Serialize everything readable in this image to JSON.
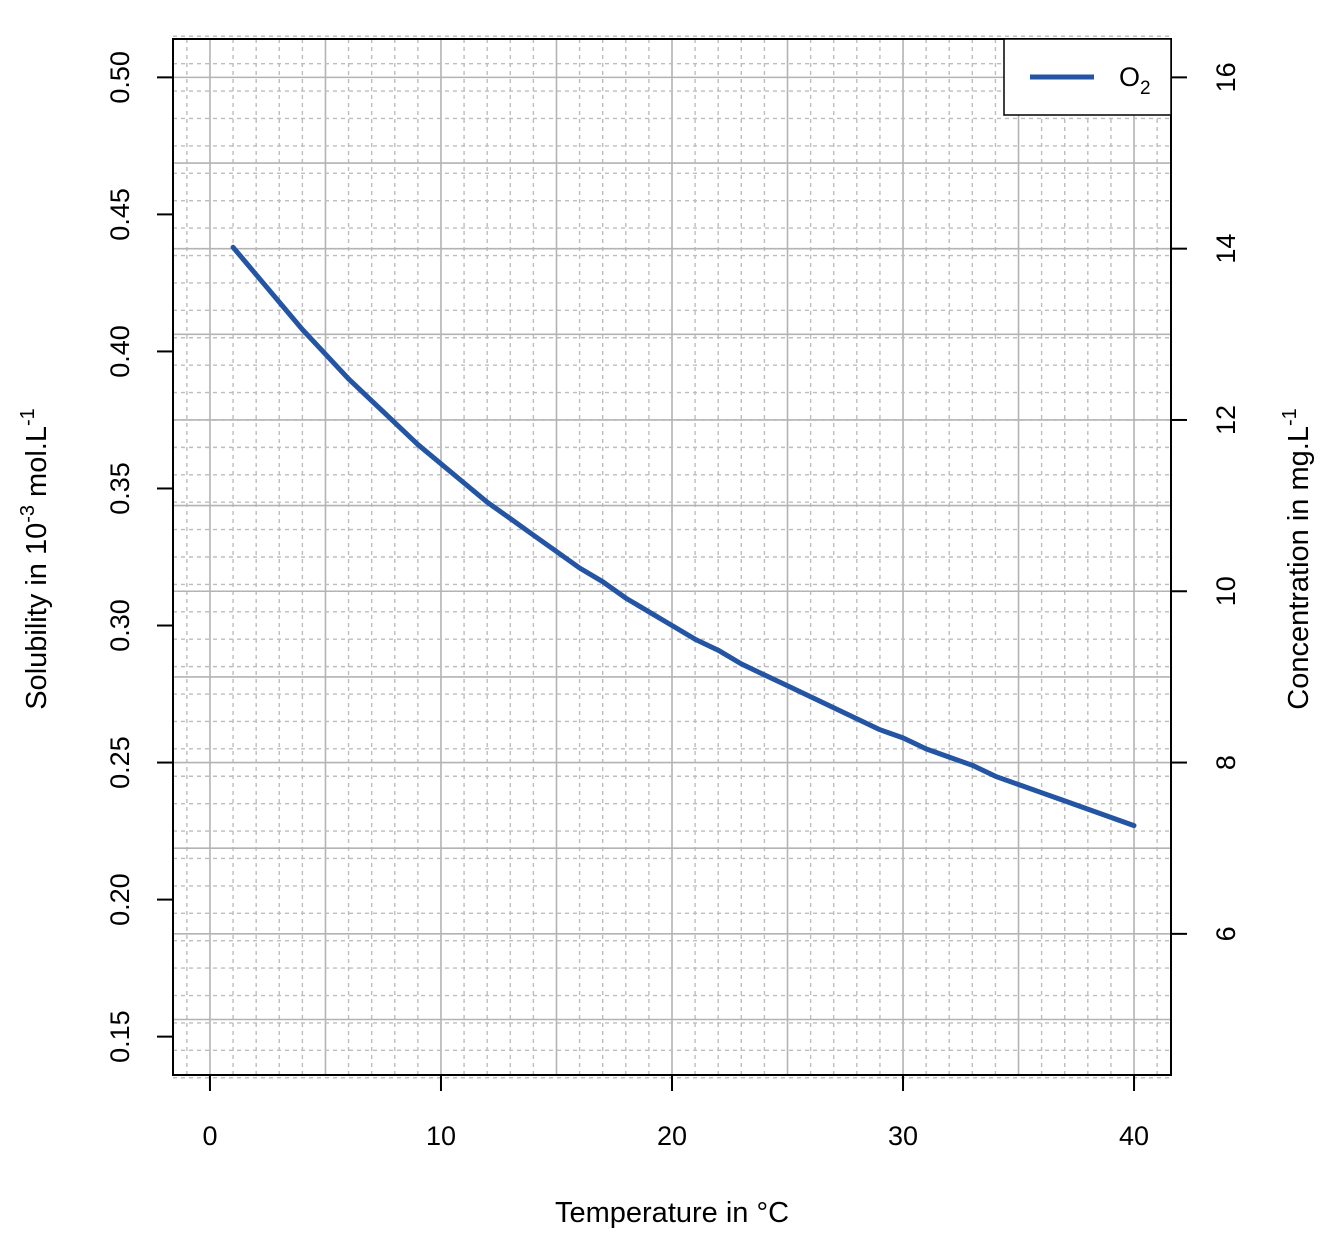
{
  "chart_data": {
    "type": "line",
    "xlabel": "Temperature in °C",
    "ylabel": {
      "prefix": "Solubility in 10",
      "sup1": "-3",
      "middle": " mol.L",
      "sup2": "-1"
    },
    "y2label": {
      "prefix": "Concentration in mg.L",
      "sup": "-1"
    },
    "xlim": [
      0,
      40
    ],
    "ylim": [
      0.15,
      0.5
    ],
    "y2lim": [
      6,
      16
    ],
    "x_ticks": [
      0,
      10,
      20,
      30,
      40
    ],
    "y_ticks": [
      "0.15",
      "0.20",
      "0.25",
      "0.30",
      "0.35",
      "0.40",
      "0.45",
      "0.50"
    ],
    "y2_ticks": [
      6,
      8,
      10,
      12,
      14,
      16
    ],
    "grid": true,
    "legend": {
      "position": "top-right",
      "label": "O",
      "subscript": "2"
    },
    "colors": {
      "series": "#2455a4",
      "grid_major": "#b3b3b3",
      "grid_minor": "#bdbdbd"
    },
    "series": [
      {
        "name": "O2",
        "x": [
          1,
          2,
          3,
          4,
          5,
          6,
          7,
          8,
          9,
          10,
          11,
          12,
          13,
          14,
          15,
          16,
          17,
          18,
          19,
          20,
          21,
          22,
          23,
          24,
          25,
          26,
          27,
          28,
          29,
          30,
          31,
          32,
          33,
          34,
          35,
          36,
          37,
          38,
          39,
          40
        ],
        "y": [
          0.438,
          0.428,
          0.418,
          0.408,
          0.399,
          0.39,
          0.382,
          0.374,
          0.366,
          0.359,
          0.352,
          0.345,
          0.339,
          0.333,
          0.327,
          0.321,
          0.316,
          0.31,
          0.305,
          0.3,
          0.295,
          0.291,
          0.286,
          0.282,
          0.278,
          0.274,
          0.27,
          0.266,
          0.262,
          0.259,
          0.255,
          0.252,
          0.249,
          0.245,
          0.242,
          0.239,
          0.236,
          0.233,
          0.23,
          0.227
        ]
      }
    ]
  }
}
